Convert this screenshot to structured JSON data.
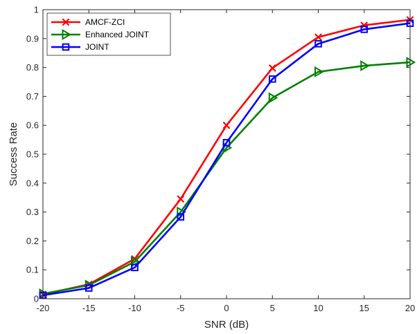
{
  "chart_data": {
    "type": "line",
    "xlabel": "SNR (dB)",
    "ylabel": "Success Rate",
    "xlim": [
      -20,
      20
    ],
    "ylim": [
      0,
      1
    ],
    "x_ticks": [
      -20,
      -15,
      -10,
      -5,
      0,
      5,
      10,
      15,
      20
    ],
    "y_ticks": [
      0,
      0.1,
      0.2,
      0.3,
      0.4,
      0.5,
      0.6,
      0.7,
      0.8,
      0.9,
      1
    ],
    "grid": false,
    "legend_position": "top-left",
    "x": [
      -20,
      -15,
      -10,
      -5,
      0,
      5,
      10,
      15,
      20
    ],
    "series": [
      {
        "name": "AMCF-ZCI",
        "color": "#ff0000",
        "marker": "x",
        "values": [
          0.015,
          0.05,
          0.138,
          0.345,
          0.6,
          0.798,
          0.905,
          0.946,
          0.965
        ]
      },
      {
        "name": "Enhanced JOINT",
        "color": "#008000",
        "marker": "triangle-right",
        "values": [
          0.017,
          0.047,
          0.128,
          0.3,
          0.522,
          0.695,
          0.785,
          0.806,
          0.818
        ]
      },
      {
        "name": "JOINT",
        "color": "#0000ff",
        "marker": "square",
        "values": [
          0.012,
          0.037,
          0.108,
          0.283,
          0.54,
          0.76,
          0.882,
          0.932,
          0.953
        ]
      }
    ]
  }
}
